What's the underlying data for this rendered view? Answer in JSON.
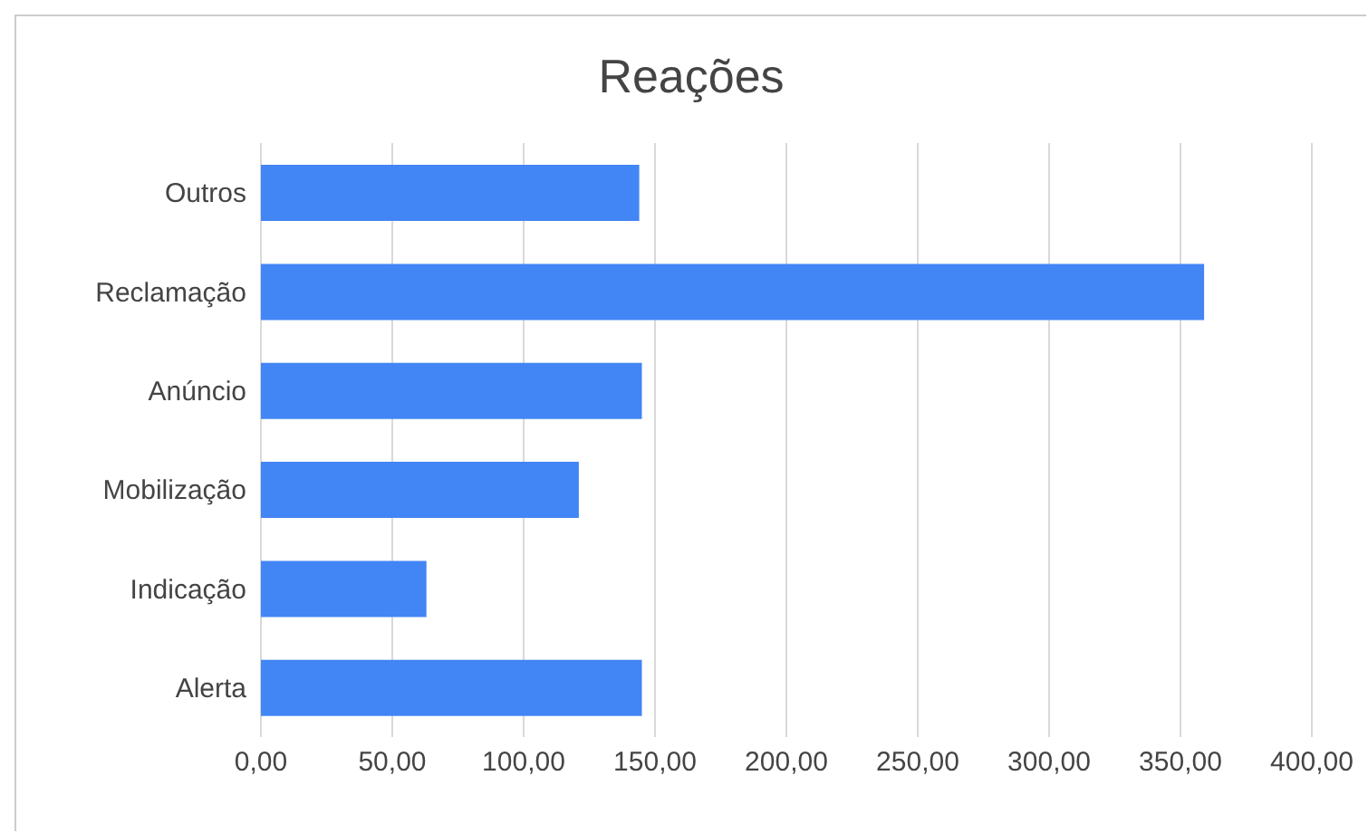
{
  "chart_data": {
    "type": "bar",
    "orientation": "horizontal",
    "title": "Reações",
    "categories": [
      "Outros",
      "Reclamação",
      "Anúncio",
      "Mobilização",
      "Indicação",
      "Alerta"
    ],
    "values": [
      144,
      359,
      145,
      121,
      63,
      145
    ],
    "color": "#4285f4",
    "xlim": [
      0,
      400
    ],
    "xticks": [
      {
        "value": 0,
        "label": "0,00"
      },
      {
        "value": 50,
        "label": "50,00"
      },
      {
        "value": 100,
        "label": "100,00"
      },
      {
        "value": 150,
        "label": "150,00"
      },
      {
        "value": 200,
        "label": "200,00"
      },
      {
        "value": 250,
        "label": "250,00"
      },
      {
        "value": 300,
        "label": "300,00"
      },
      {
        "value": 350,
        "label": "350,00"
      },
      {
        "value": 400,
        "label": "400,00"
      }
    ],
    "grid": "x",
    "legend": false
  }
}
